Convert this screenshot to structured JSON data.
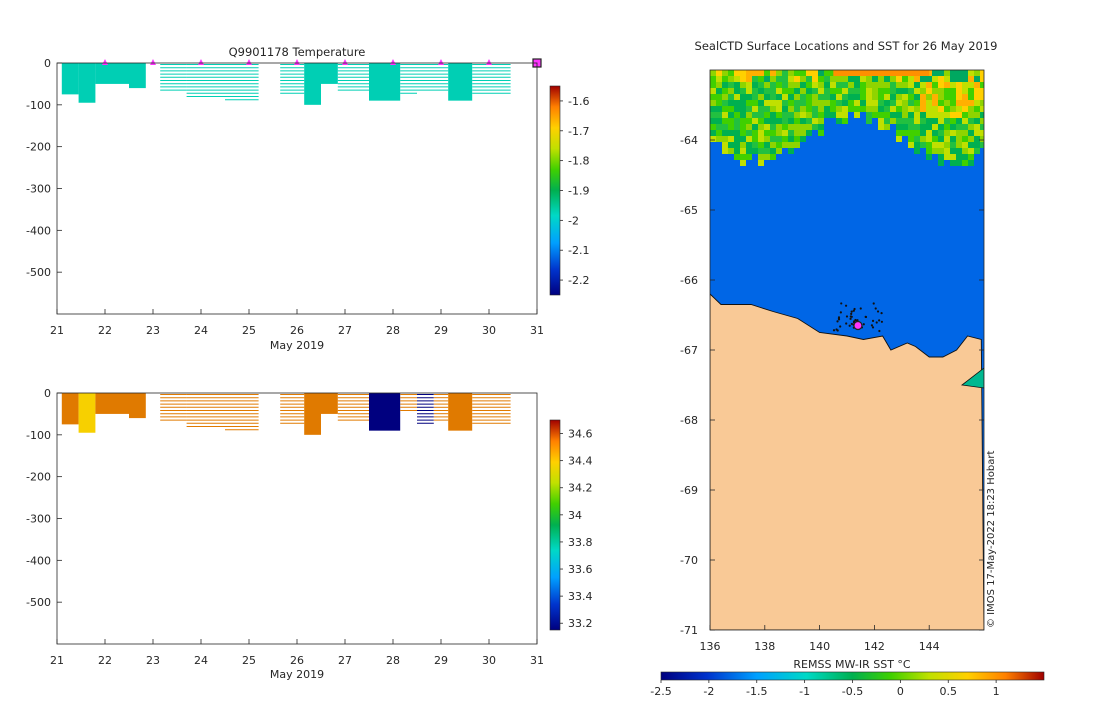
{
  "colors": {
    "temp_cyan": "#00cfb4",
    "salt_orange": "#e07a00",
    "salt_yellow": "#f7d000",
    "salt_navy": "#00007f",
    "sea_blue": "#0066e6",
    "land": "#f9c996",
    "marker": "#ff33ff"
  },
  "chart_data": [
    {
      "id": "temperature-panel",
      "type": "heatmap",
      "title": "Q9901178  Temperature",
      "xlabel": "May 2019",
      "ylabel": "",
      "xlim": [
        21,
        31
      ],
      "ylim": [
        -600,
        0
      ],
      "x_ticks": [
        "21",
        "22",
        "23",
        "24",
        "25",
        "26",
        "27",
        "28",
        "29",
        "30",
        "31"
      ],
      "y_ticks": [
        "0",
        "-100",
        "-200",
        "-300",
        "-400",
        "-500"
      ],
      "colorbar": {
        "min": -2.25,
        "max": -1.55,
        "ticks": [
          "-1.6",
          "-1.7",
          "-1.8",
          "-1.9",
          "-2",
          "-2.1",
          "-2.2"
        ]
      },
      "profiles": [
        {
          "x0": 21.1,
          "x1": 21.45,
          "depth": 75,
          "value": -1.98,
          "style": "solid"
        },
        {
          "x0": 21.45,
          "x1": 21.8,
          "depth": 95,
          "value": -1.98,
          "style": "solid"
        },
        {
          "x0": 21.8,
          "x1": 22.5,
          "depth": 50,
          "value": -1.98,
          "style": "solid"
        },
        {
          "x0": 22.5,
          "x1": 22.85,
          "depth": 60,
          "value": -1.98,
          "style": "solid"
        },
        {
          "x0": 23.15,
          "x1": 23.7,
          "depth": 70,
          "value": -1.99,
          "style": "lines"
        },
        {
          "x0": 23.7,
          "x1": 24.5,
          "depth": 85,
          "value": -1.99,
          "style": "lines"
        },
        {
          "x0": 24.5,
          "x1": 25.2,
          "depth": 90,
          "value": -1.99,
          "style": "lines"
        },
        {
          "x0": 25.65,
          "x1": 26.15,
          "depth": 80,
          "value": -1.99,
          "style": "lines"
        },
        {
          "x0": 26.15,
          "x1": 26.5,
          "depth": 100,
          "value": -1.98,
          "style": "solid"
        },
        {
          "x0": 26.5,
          "x1": 26.85,
          "depth": 50,
          "value": -1.98,
          "style": "solid"
        },
        {
          "x0": 26.85,
          "x1": 27.5,
          "depth": 70,
          "value": -1.99,
          "style": "lines"
        },
        {
          "x0": 27.5,
          "x1": 28.15,
          "depth": 90,
          "value": -1.98,
          "style": "solid"
        },
        {
          "x0": 28.15,
          "x1": 28.5,
          "depth": 80,
          "value": -1.99,
          "style": "lines"
        },
        {
          "x0": 28.5,
          "x1": 29.15,
          "depth": 70,
          "value": -1.99,
          "style": "lines"
        },
        {
          "x0": 29.15,
          "x1": 29.65,
          "depth": 90,
          "value": -1.98,
          "style": "solid"
        },
        {
          "x0": 29.65,
          "x1": 30.45,
          "depth": 75,
          "value": -1.99,
          "style": "lines"
        }
      ],
      "midnight_markers": [
        22,
        23,
        24,
        25,
        26,
        27,
        28,
        29,
        30
      ]
    },
    {
      "id": "salinity-panel",
      "type": "heatmap",
      "title": "",
      "xlabel": "May 2019",
      "ylabel": "",
      "xlim": [
        21,
        31
      ],
      "ylim": [
        -600,
        0
      ],
      "x_ticks": [
        "21",
        "22",
        "23",
        "24",
        "25",
        "26",
        "27",
        "28",
        "29",
        "30",
        "31"
      ],
      "y_ticks": [
        "0",
        "-100",
        "-200",
        "-300",
        "-400",
        "-500"
      ],
      "colorbar": {
        "min": 33.15,
        "max": 34.7,
        "ticks": [
          "34.6",
          "34.4",
          "34.2",
          "34",
          "33.8",
          "33.6",
          "33.4",
          "33.2"
        ]
      },
      "profiles": [
        {
          "x0": 21.1,
          "x1": 21.45,
          "depth": 75,
          "value": 34.42,
          "style": "solid"
        },
        {
          "x0": 21.45,
          "x1": 21.8,
          "depth": 95,
          "value": 34.12,
          "style": "solid"
        },
        {
          "x0": 21.8,
          "x1": 22.5,
          "depth": 50,
          "value": 34.42,
          "style": "solid"
        },
        {
          "x0": 22.5,
          "x1": 22.85,
          "depth": 60,
          "value": 34.42,
          "style": "solid"
        },
        {
          "x0": 23.15,
          "x1": 23.7,
          "depth": 70,
          "value": 34.42,
          "style": "lines"
        },
        {
          "x0": 23.7,
          "x1": 24.5,
          "depth": 85,
          "value": 34.42,
          "style": "lines"
        },
        {
          "x0": 24.5,
          "x1": 25.2,
          "depth": 90,
          "value": 34.42,
          "style": "lines"
        },
        {
          "x0": 25.65,
          "x1": 26.15,
          "depth": 80,
          "value": 34.42,
          "style": "lines"
        },
        {
          "x0": 26.15,
          "x1": 26.5,
          "depth": 100,
          "value": 34.42,
          "style": "solid"
        },
        {
          "x0": 26.5,
          "x1": 26.85,
          "depth": 50,
          "value": 34.42,
          "style": "solid"
        },
        {
          "x0": 26.85,
          "x1": 27.5,
          "depth": 70,
          "value": 34.42,
          "style": "lines"
        },
        {
          "x0": 27.5,
          "x1": 28.15,
          "depth": 90,
          "value": 33.2,
          "style": "solid"
        },
        {
          "x0": 28.15,
          "x1": 28.5,
          "depth": 45,
          "value": 34.42,
          "style": "lines"
        },
        {
          "x0": 28.5,
          "x1": 28.85,
          "depth": 80,
          "value": 33.2,
          "style": "lines"
        },
        {
          "x0": 28.85,
          "x1": 29.15,
          "depth": 70,
          "value": 34.42,
          "style": "lines"
        },
        {
          "x0": 29.15,
          "x1": 29.65,
          "depth": 90,
          "value": 34.42,
          "style": "solid"
        },
        {
          "x0": 29.65,
          "x1": 30.45,
          "depth": 75,
          "value": 34.42,
          "style": "lines"
        }
      ]
    },
    {
      "id": "sst-map",
      "type": "heatmap",
      "title": "SealCTD Surface Locations and SST for 26 May 2019",
      "xlabel": "",
      "ylabel": "",
      "xlim": [
        136,
        146
      ],
      "ylim": [
        -71,
        -63
      ],
      "x_ticks": [
        "136",
        "138",
        "140",
        "142",
        "144"
      ],
      "y_ticks": [
        "-64",
        "-65",
        "-66",
        "-67",
        "-68",
        "-69",
        "-70",
        "-71"
      ],
      "colorbar": {
        "label": "REMSS MW-IR SST °C",
        "min": -2.5,
        "max": 1.5,
        "ticks": [
          "-2.5",
          "-2",
          "-1.5",
          "-1",
          "-0.5",
          "0",
          "0.5",
          "1"
        ]
      },
      "sst_north_band_lat": [
        -63.6,
        -63.85
      ],
      "coast": [
        [
          136,
          -66.2
        ],
        [
          136.4,
          -66.35
        ],
        [
          137.5,
          -66.35
        ],
        [
          138.3,
          -66.45
        ],
        [
          139.2,
          -66.55
        ],
        [
          140.0,
          -66.75
        ],
        [
          141.0,
          -66.8
        ],
        [
          141.6,
          -66.85
        ],
        [
          142.3,
          -66.8
        ],
        [
          142.6,
          -67.0
        ],
        [
          143.2,
          -66.9
        ],
        [
          143.5,
          -66.95
        ],
        [
          144.0,
          -67.1
        ],
        [
          144.5,
          -67.1
        ],
        [
          145.0,
          -67.0
        ],
        [
          145.4,
          -66.8
        ],
        [
          145.9,
          -66.85
        ]
      ],
      "ctd_location": [
        141.4,
        -66.65
      ],
      "footer": "© IMOS 17-May-2022 18:23 Hobart"
    }
  ]
}
